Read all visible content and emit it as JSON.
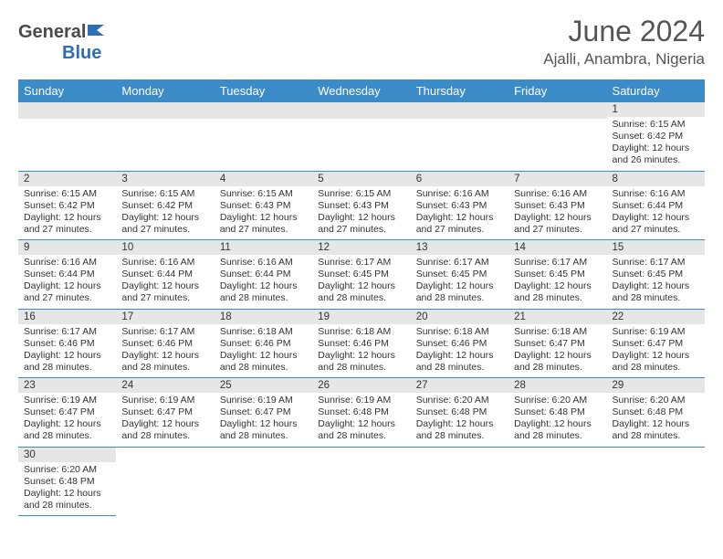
{
  "brand": {
    "name_part1": "General",
    "name_part2": "Blue"
  },
  "title": "June 2024",
  "location": "Ajalli, Anambra, Nigeria",
  "days_of_week": [
    "Sunday",
    "Monday",
    "Tuesday",
    "Wednesday",
    "Thursday",
    "Friday",
    "Saturday"
  ],
  "colors": {
    "header_bg": "#3b8bc9",
    "header_fg": "#ffffff",
    "daynum_bg": "#e6e6e6",
    "row_divider": "#3b8bc9",
    "text": "#333333",
    "title": "#555555",
    "brand_gray": "#4a4a4a",
    "brand_blue": "#2d6eb5"
  },
  "weeks": [
    [
      null,
      null,
      null,
      null,
      null,
      null,
      {
        "n": "1",
        "sr": "6:15 AM",
        "ss": "6:42 PM",
        "dl": "12 hours and 26 minutes."
      }
    ],
    [
      {
        "n": "2",
        "sr": "6:15 AM",
        "ss": "6:42 PM",
        "dl": "12 hours and 27 minutes."
      },
      {
        "n": "3",
        "sr": "6:15 AM",
        "ss": "6:42 PM",
        "dl": "12 hours and 27 minutes."
      },
      {
        "n": "4",
        "sr": "6:15 AM",
        "ss": "6:43 PM",
        "dl": "12 hours and 27 minutes."
      },
      {
        "n": "5",
        "sr": "6:15 AM",
        "ss": "6:43 PM",
        "dl": "12 hours and 27 minutes."
      },
      {
        "n": "6",
        "sr": "6:16 AM",
        "ss": "6:43 PM",
        "dl": "12 hours and 27 minutes."
      },
      {
        "n": "7",
        "sr": "6:16 AM",
        "ss": "6:43 PM",
        "dl": "12 hours and 27 minutes."
      },
      {
        "n": "8",
        "sr": "6:16 AM",
        "ss": "6:44 PM",
        "dl": "12 hours and 27 minutes."
      }
    ],
    [
      {
        "n": "9",
        "sr": "6:16 AM",
        "ss": "6:44 PM",
        "dl": "12 hours and 27 minutes."
      },
      {
        "n": "10",
        "sr": "6:16 AM",
        "ss": "6:44 PM",
        "dl": "12 hours and 27 minutes."
      },
      {
        "n": "11",
        "sr": "6:16 AM",
        "ss": "6:44 PM",
        "dl": "12 hours and 28 minutes."
      },
      {
        "n": "12",
        "sr": "6:17 AM",
        "ss": "6:45 PM",
        "dl": "12 hours and 28 minutes."
      },
      {
        "n": "13",
        "sr": "6:17 AM",
        "ss": "6:45 PM",
        "dl": "12 hours and 28 minutes."
      },
      {
        "n": "14",
        "sr": "6:17 AM",
        "ss": "6:45 PM",
        "dl": "12 hours and 28 minutes."
      },
      {
        "n": "15",
        "sr": "6:17 AM",
        "ss": "6:45 PM",
        "dl": "12 hours and 28 minutes."
      }
    ],
    [
      {
        "n": "16",
        "sr": "6:17 AM",
        "ss": "6:46 PM",
        "dl": "12 hours and 28 minutes."
      },
      {
        "n": "17",
        "sr": "6:17 AM",
        "ss": "6:46 PM",
        "dl": "12 hours and 28 minutes."
      },
      {
        "n": "18",
        "sr": "6:18 AM",
        "ss": "6:46 PM",
        "dl": "12 hours and 28 minutes."
      },
      {
        "n": "19",
        "sr": "6:18 AM",
        "ss": "6:46 PM",
        "dl": "12 hours and 28 minutes."
      },
      {
        "n": "20",
        "sr": "6:18 AM",
        "ss": "6:46 PM",
        "dl": "12 hours and 28 minutes."
      },
      {
        "n": "21",
        "sr": "6:18 AM",
        "ss": "6:47 PM",
        "dl": "12 hours and 28 minutes."
      },
      {
        "n": "22",
        "sr": "6:19 AM",
        "ss": "6:47 PM",
        "dl": "12 hours and 28 minutes."
      }
    ],
    [
      {
        "n": "23",
        "sr": "6:19 AM",
        "ss": "6:47 PM",
        "dl": "12 hours and 28 minutes."
      },
      {
        "n": "24",
        "sr": "6:19 AM",
        "ss": "6:47 PM",
        "dl": "12 hours and 28 minutes."
      },
      {
        "n": "25",
        "sr": "6:19 AM",
        "ss": "6:47 PM",
        "dl": "12 hours and 28 minutes."
      },
      {
        "n": "26",
        "sr": "6:19 AM",
        "ss": "6:48 PM",
        "dl": "12 hours and 28 minutes."
      },
      {
        "n": "27",
        "sr": "6:20 AM",
        "ss": "6:48 PM",
        "dl": "12 hours and 28 minutes."
      },
      {
        "n": "28",
        "sr": "6:20 AM",
        "ss": "6:48 PM",
        "dl": "12 hours and 28 minutes."
      },
      {
        "n": "29",
        "sr": "6:20 AM",
        "ss": "6:48 PM",
        "dl": "12 hours and 28 minutes."
      }
    ],
    [
      {
        "n": "30",
        "sr": "6:20 AM",
        "ss": "6:48 PM",
        "dl": "12 hours and 28 minutes."
      },
      null,
      null,
      null,
      null,
      null,
      null
    ]
  ],
  "labels": {
    "sunrise": "Sunrise:",
    "sunset": "Sunset:",
    "daylight": "Daylight:"
  }
}
